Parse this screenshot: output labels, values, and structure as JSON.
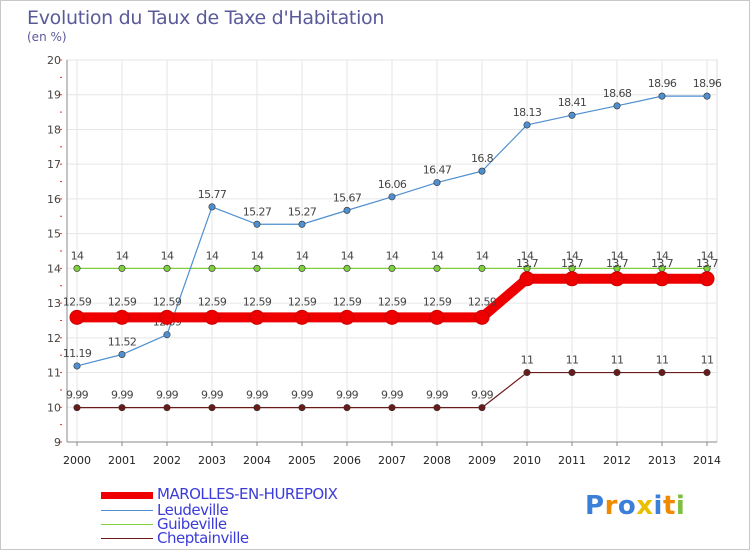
{
  "chart_data": {
    "type": "line",
    "title": "Evolution du Taux de Taxe d'Habitation",
    "ylabel": "(en %)",
    "ylim": [
      9,
      20
    ],
    "yticks": [
      9,
      10,
      11,
      12,
      13,
      14,
      15,
      16,
      17,
      18,
      19,
      20
    ],
    "x": [
      2000,
      2001,
      2002,
      2003,
      2004,
      2005,
      2006,
      2007,
      2008,
      2009,
      2010,
      2011,
      2012,
      2013,
      2014
    ],
    "series": [
      {
        "name": "Cheptainville",
        "color": "#6b1a1a",
        "values": [
          9.99,
          9.99,
          9.99,
          9.99,
          9.99,
          9.99,
          9.99,
          9.99,
          9.99,
          9.99,
          11,
          11,
          11,
          11,
          11
        ]
      },
      {
        "name": "Guibeville",
        "color": "#7fcf3f",
        "values": [
          14,
          14,
          14,
          14,
          14,
          14,
          14,
          14,
          14,
          14,
          14,
          14,
          14,
          14,
          14
        ]
      },
      {
        "name": "Leudeville",
        "color": "#4f8fcf",
        "values": [
          11.19,
          11.52,
          12.09,
          15.77,
          15.27,
          15.27,
          15.67,
          16.06,
          16.47,
          16.8,
          18.13,
          18.41,
          18.68,
          18.96,
          18.96
        ]
      },
      {
        "name": "MAROLLES-EN-HUREPOIX",
        "color": "#ee0000",
        "values": [
          12.59,
          12.59,
          12.59,
          12.59,
          12.59,
          12.59,
          12.59,
          12.59,
          12.59,
          12.59,
          13.7,
          13.7,
          13.7,
          13.7,
          13.7
        ]
      }
    ],
    "value_labels": {
      "MAROLLES-EN-HUREPOIX": [
        "12.59",
        "12.59",
        "12.59",
        "12.59",
        "12.59",
        "12.59",
        "12.59",
        "12.59",
        "12.59",
        "12.59",
        "13.7",
        "13.7",
        "13.7",
        "13.7",
        "13.7"
      ],
      "Leudeville": [
        "11.19",
        "11.52",
        "12.09",
        "15.77",
        "15.27",
        "15.27",
        "15.67",
        "16.06",
        "16.47",
        "16.8",
        "18.13",
        "18.41",
        "18.68",
        "18.96",
        "18.96"
      ],
      "Guibeville": [
        "14",
        "14",
        "14",
        "14",
        "14",
        "14",
        "14",
        "14",
        "14",
        "14",
        "14",
        "14",
        "14",
        "14",
        "14"
      ],
      "Cheptainville": [
        "9.99",
        "9.99",
        "9.99",
        "9.99",
        "9.99",
        "9.99",
        "9.99",
        "9.99",
        "9.99",
        "9.99",
        "11",
        "11",
        "11",
        "11",
        "11"
      ]
    },
    "legend": {
      "position": "bottom-left",
      "items": [
        "MAROLLES-EN-HUREPOIX",
        "Leudeville",
        "Guibeville",
        "Cheptainville"
      ]
    }
  },
  "logo": {
    "text": "Proxiti",
    "letters": [
      "P",
      "r",
      "o",
      "x",
      "i",
      "t",
      "i"
    ],
    "colors": [
      "#3b7fd9",
      "#f08a00",
      "#3b7fd9",
      "#e8c000",
      "#3b7fd9",
      "#f08a00",
      "#7fbf3f"
    ]
  }
}
